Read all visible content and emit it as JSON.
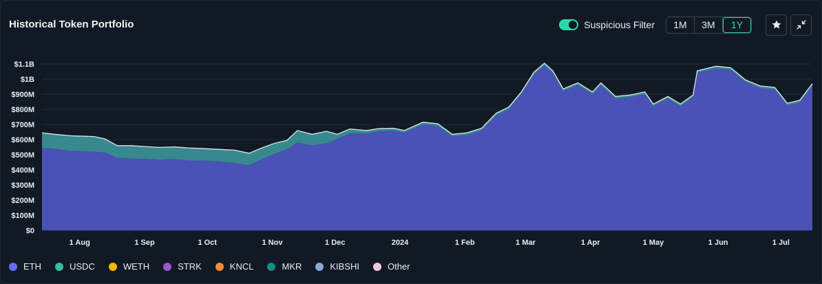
{
  "header": {
    "title": "Historical Token Portfolio",
    "filter_label": "Suspicious Filter",
    "filter_on": true,
    "ranges": [
      "1M",
      "3M",
      "1Y"
    ],
    "active_range": "1Y",
    "star_icon": "star-icon",
    "collapse_icon": "collapse-icon"
  },
  "colors": {
    "accent": "#2fd6a8",
    "eth": "#6470f0",
    "usdc": "#3cb9a3"
  },
  "chart_data": {
    "type": "area",
    "stacked": true,
    "y_ticks": [
      "$0",
      "$100M",
      "$200M",
      "$300M",
      "$400M",
      "$500M",
      "$600M",
      "$700M",
      "$800M",
      "$900M",
      "$1B",
      "$1.1B"
    ],
    "y_tick_values": [
      0,
      100,
      200,
      300,
      400,
      500,
      600,
      700,
      800,
      900,
      1000,
      1100
    ],
    "ylim": [
      0,
      1100
    ],
    "y_unit": "$M",
    "x_ticks": [
      "1 Aug",
      "1 Sep",
      "1 Oct",
      "1 Nov",
      "1 Dec",
      "2024",
      "1 Feb",
      "1 Mar",
      "1 Apr",
      "1 May",
      "1 Jun",
      "1 Jul"
    ],
    "x_tick_dates": [
      "2023-08-01",
      "2023-09-01",
      "2023-10-01",
      "2023-11-01",
      "2023-12-01",
      "2024-01-01",
      "2024-02-01",
      "2024-03-01",
      "2024-04-01",
      "2024-05-01",
      "2024-06-01",
      "2024-07-01"
    ],
    "x_range": [
      "2023-07-14",
      "2024-07-16"
    ],
    "grid": true,
    "legend_position": "bottom-left",
    "legend": [
      {
        "name": "ETH",
        "color": "#6470f0"
      },
      {
        "name": "USDC",
        "color": "#3cb9a3"
      },
      {
        "name": "WETH",
        "color": "#f0b90b"
      },
      {
        "name": "STRK",
        "color": "#9b59c6"
      },
      {
        "name": "KNCL",
        "color": "#f08a3c"
      },
      {
        "name": "MKR",
        "color": "#1a8a84"
      },
      {
        "name": "KIBSHI",
        "color": "#8fa8d8"
      },
      {
        "name": "Other",
        "color": "#f5c6dc"
      }
    ],
    "series": [
      {
        "name": "ETH",
        "color": "#4a52b8",
        "points": [
          [
            "2023-07-14",
            545
          ],
          [
            "2023-07-20",
            540
          ],
          [
            "2023-07-28",
            525
          ],
          [
            "2023-08-08",
            520
          ],
          [
            "2023-08-13",
            515
          ],
          [
            "2023-08-19",
            478
          ],
          [
            "2023-08-26",
            475
          ],
          [
            "2023-09-01",
            472
          ],
          [
            "2023-09-08",
            468
          ],
          [
            "2023-09-15",
            470
          ],
          [
            "2023-09-22",
            462
          ],
          [
            "2023-09-30",
            460
          ],
          [
            "2023-10-07",
            455
          ],
          [
            "2023-10-14",
            445
          ],
          [
            "2023-10-21",
            430
          ],
          [
            "2023-10-27",
            470
          ],
          [
            "2023-11-02",
            505
          ],
          [
            "2023-11-08",
            535
          ],
          [
            "2023-11-13",
            580
          ],
          [
            "2023-11-20",
            560
          ],
          [
            "2023-11-27",
            575
          ],
          [
            "2023-12-02",
            605
          ],
          [
            "2023-12-08",
            640
          ],
          [
            "2023-12-16",
            640
          ],
          [
            "2023-12-22",
            655
          ],
          [
            "2023-12-29",
            660
          ],
          [
            "2024-01-03",
            645
          ],
          [
            "2024-01-12",
            700
          ],
          [
            "2024-01-19",
            690
          ],
          [
            "2024-01-26",
            620
          ],
          [
            "2024-02-02",
            630
          ],
          [
            "2024-02-09",
            660
          ],
          [
            "2024-02-16",
            760
          ],
          [
            "2024-02-22",
            800
          ],
          [
            "2024-02-28",
            900
          ],
          [
            "2024-03-05",
            1030
          ],
          [
            "2024-03-10",
            1090
          ],
          [
            "2024-03-14",
            1040
          ],
          [
            "2024-03-19",
            920
          ],
          [
            "2024-03-26",
            960
          ],
          [
            "2024-04-02",
            900
          ],
          [
            "2024-04-06",
            960
          ],
          [
            "2024-04-13",
            870
          ],
          [
            "2024-04-20",
            880
          ],
          [
            "2024-04-27",
            900
          ],
          [
            "2024-05-01",
            820
          ],
          [
            "2024-05-08",
            870
          ],
          [
            "2024-05-14",
            820
          ],
          [
            "2024-05-20",
            880
          ],
          [
            "2024-05-22",
            1040
          ],
          [
            "2024-05-31",
            1070
          ],
          [
            "2024-06-07",
            1060
          ],
          [
            "2024-06-14",
            980
          ],
          [
            "2024-06-21",
            940
          ],
          [
            "2024-06-28",
            930
          ],
          [
            "2024-07-04",
            825
          ],
          [
            "2024-07-10",
            845
          ],
          [
            "2024-07-16",
            955
          ]
        ]
      },
      {
        "name": "USDC",
        "color": "#3a8f95",
        "points": [
          [
            "2023-07-14",
            100
          ],
          [
            "2023-07-20",
            95
          ],
          [
            "2023-07-28",
            100
          ],
          [
            "2023-08-08",
            100
          ],
          [
            "2023-08-13",
            90
          ],
          [
            "2023-08-19",
            82
          ],
          [
            "2023-08-26",
            85
          ],
          [
            "2023-09-01",
            82
          ],
          [
            "2023-09-08",
            80
          ],
          [
            "2023-09-15",
            82
          ],
          [
            "2023-09-22",
            83
          ],
          [
            "2023-09-30",
            80
          ],
          [
            "2023-10-07",
            80
          ],
          [
            "2023-10-14",
            85
          ],
          [
            "2023-10-21",
            80
          ],
          [
            "2023-10-27",
            75
          ],
          [
            "2023-11-02",
            70
          ],
          [
            "2023-11-08",
            60
          ],
          [
            "2023-11-13",
            80
          ],
          [
            "2023-11-20",
            75
          ],
          [
            "2023-11-27",
            80
          ],
          [
            "2023-12-02",
            30
          ],
          [
            "2023-12-08",
            30
          ],
          [
            "2023-12-16",
            20
          ],
          [
            "2023-12-22",
            18
          ],
          [
            "2023-12-29",
            15
          ],
          [
            "2024-01-03",
            15
          ],
          [
            "2024-01-12",
            15
          ],
          [
            "2024-01-19",
            15
          ],
          [
            "2024-01-26",
            15
          ],
          [
            "2024-02-02",
            15
          ],
          [
            "2024-02-09",
            15
          ],
          [
            "2024-02-16",
            15
          ],
          [
            "2024-02-22",
            15
          ],
          [
            "2024-02-28",
            15
          ],
          [
            "2024-03-05",
            15
          ],
          [
            "2024-03-10",
            15
          ],
          [
            "2024-03-14",
            15
          ],
          [
            "2024-03-19",
            15
          ],
          [
            "2024-03-26",
            15
          ],
          [
            "2024-04-02",
            15
          ],
          [
            "2024-04-06",
            15
          ],
          [
            "2024-04-13",
            15
          ],
          [
            "2024-04-20",
            15
          ],
          [
            "2024-04-27",
            15
          ],
          [
            "2024-05-01",
            15
          ],
          [
            "2024-05-08",
            15
          ],
          [
            "2024-05-14",
            15
          ],
          [
            "2024-05-20",
            15
          ],
          [
            "2024-05-22",
            15
          ],
          [
            "2024-05-31",
            15
          ],
          [
            "2024-06-07",
            15
          ],
          [
            "2024-06-14",
            15
          ],
          [
            "2024-06-21",
            15
          ],
          [
            "2024-06-28",
            15
          ],
          [
            "2024-07-04",
            15
          ],
          [
            "2024-07-10",
            15
          ],
          [
            "2024-07-16",
            15
          ]
        ]
      }
    ]
  }
}
